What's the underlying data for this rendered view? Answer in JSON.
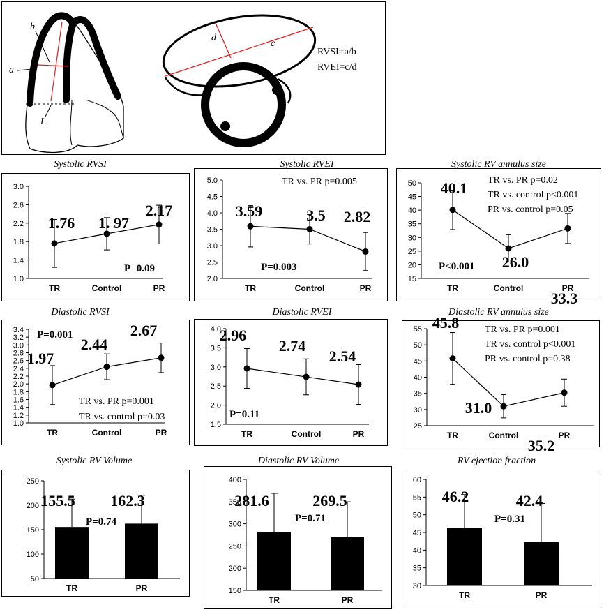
{
  "diagram": {
    "labels": {
      "a": "a",
      "b": "b",
      "L": "L",
      "d": "d",
      "c": "c"
    },
    "formula1": "RVSI=a/b",
    "formula2": "RVEI=c/d"
  },
  "chart_data": [
    {
      "id": "p1",
      "type": "line",
      "title": "Systolic RVSI",
      "categories": [
        "TR",
        "Control",
        "PR"
      ],
      "values": [
        1.76,
        1.97,
        2.17
      ],
      "value_labels": [
        "1.76",
        "1. 97",
        "2.17"
      ],
      "errors": [
        0.52,
        0.35,
        0.42
      ],
      "ylim": [
        1.0,
        3.0
      ],
      "yticks": [
        "1.0",
        "1.4",
        "1.8",
        "2.2",
        "2.6",
        "3.0"
      ],
      "annotations": [
        "P=0.09"
      ]
    },
    {
      "id": "p2",
      "type": "line",
      "title": "Systolic RVEI",
      "categories": [
        "TR",
        "Control",
        "PR"
      ],
      "values": [
        3.59,
        3.5,
        2.82
      ],
      "value_labels": [
        "3.59",
        "3.5",
        "2.82"
      ],
      "errors": [
        0.63,
        0.45,
        0.58
      ],
      "ylim": [
        2.0,
        5.0
      ],
      "yticks": [
        "2.0",
        "2.5",
        "3.0",
        "3.5",
        "4.0",
        "4.5",
        "5.0"
      ],
      "annotations": [
        "TR vs. PR  p=0.005",
        "P=0.003"
      ]
    },
    {
      "id": "p3",
      "type": "line",
      "title": "Systolic RV annulus size",
      "categories": [
        "TR",
        "Control",
        "PR"
      ],
      "values": [
        40.1,
        26.0,
        33.3
      ],
      "value_labels": [
        "40.1",
        "26.0",
        "33.3"
      ],
      "errors": [
        7.2,
        5.0,
        5.5
      ],
      "ylim": [
        15,
        50
      ],
      "yticks": [
        "15",
        "20",
        "25",
        "30",
        "35",
        "40",
        "45",
        "50"
      ],
      "annotations": [
        "TR vs. PR  p=0.02",
        "TR vs. control  p<0.001",
        "PR vs. control p=0.05",
        "P<0.001"
      ]
    },
    {
      "id": "p4",
      "type": "line",
      "title": "Diastolic RVSI",
      "categories": [
        "TR",
        "Control",
        "PR"
      ],
      "values": [
        1.97,
        2.44,
        2.67
      ],
      "value_labels": [
        "1.97",
        "2.44",
        "2.67"
      ],
      "errors": [
        0.5,
        0.33,
        0.38
      ],
      "ylim": [
        1.0,
        3.4
      ],
      "yticks": [
        "1.0",
        "1.2",
        "1.4",
        "1.6",
        "1.8",
        "2.0",
        "2.2",
        "2.4",
        "2.6",
        "2.8",
        "3.0",
        "3.2",
        "3.4"
      ],
      "annotations": [
        "P=0.001",
        "TR vs. PR  p=0.001",
        "TR vs. control  p=0.03"
      ]
    },
    {
      "id": "p5",
      "type": "line",
      "title": "Diastolic RVEI",
      "categories": [
        "TR",
        "Control",
        "PR"
      ],
      "values": [
        2.96,
        2.74,
        2.54
      ],
      "value_labels": [
        "2.96",
        "2.74",
        "2.54"
      ],
      "errors": [
        0.52,
        0.47,
        0.52
      ],
      "ylim": [
        1.5,
        4.0
      ],
      "yticks": [
        "1.5",
        "2.0",
        "2.5",
        "3.0",
        "3.5",
        "4.0"
      ],
      "annotations": [
        "P=0.11"
      ]
    },
    {
      "id": "p6",
      "type": "line",
      "title": "Diastolic RV annulus size",
      "categories": [
        "TR",
        "Control",
        "PR"
      ],
      "values": [
        45.8,
        31.0,
        35.2
      ],
      "value_labels": [
        "45.8",
        "31.0",
        "35.2"
      ],
      "errors": [
        8.0,
        3.6,
        4.2
      ],
      "ylim": [
        25,
        55
      ],
      "yticks": [
        "25",
        "30",
        "35",
        "40",
        "45",
        "50",
        "55"
      ],
      "annotations": [
        "TR vs. PR  p=0.001",
        "TR vs. control  p<0.001",
        "PR vs. control p=0.38"
      ]
    },
    {
      "id": "p7",
      "type": "bar",
      "title": "Systolic RV Volume",
      "categories": [
        "TR",
        "PR"
      ],
      "values": [
        155.5,
        162.3
      ],
      "value_labels": [
        "155.5",
        "162.3"
      ],
      "errors": [
        57,
        58
      ],
      "ylim": [
        50,
        250
      ],
      "yticks": [
        "50",
        "100",
        "150",
        "200",
        "250"
      ],
      "annotations": [
        "P=0.74"
      ]
    },
    {
      "id": "p8",
      "type": "bar",
      "title": "Diastolic RV Volume",
      "categories": [
        "TR",
        "PR"
      ],
      "values": [
        281.6,
        269.5
      ],
      "value_labels": [
        "281.6",
        "269.5"
      ],
      "errors": [
        87,
        80
      ],
      "ylim": [
        150,
        400
      ],
      "yticks": [
        "150",
        "200",
        "250",
        "300",
        "350",
        "400"
      ],
      "annotations": [
        "P=0.71"
      ]
    },
    {
      "id": "p9",
      "type": "bar",
      "title": "RV ejection fraction",
      "categories": [
        "TR",
        "PR"
      ],
      "values": [
        46.2,
        42.4
      ],
      "value_labels": [
        "46.2",
        "42.4"
      ],
      "errors": [
        9.5,
        10.8
      ],
      "ylim": [
        30,
        60
      ],
      "yticks": [
        "30",
        "35",
        "40",
        "45",
        "50",
        "55",
        "60"
      ],
      "annotations": [
        "P=0.31"
      ]
    }
  ]
}
